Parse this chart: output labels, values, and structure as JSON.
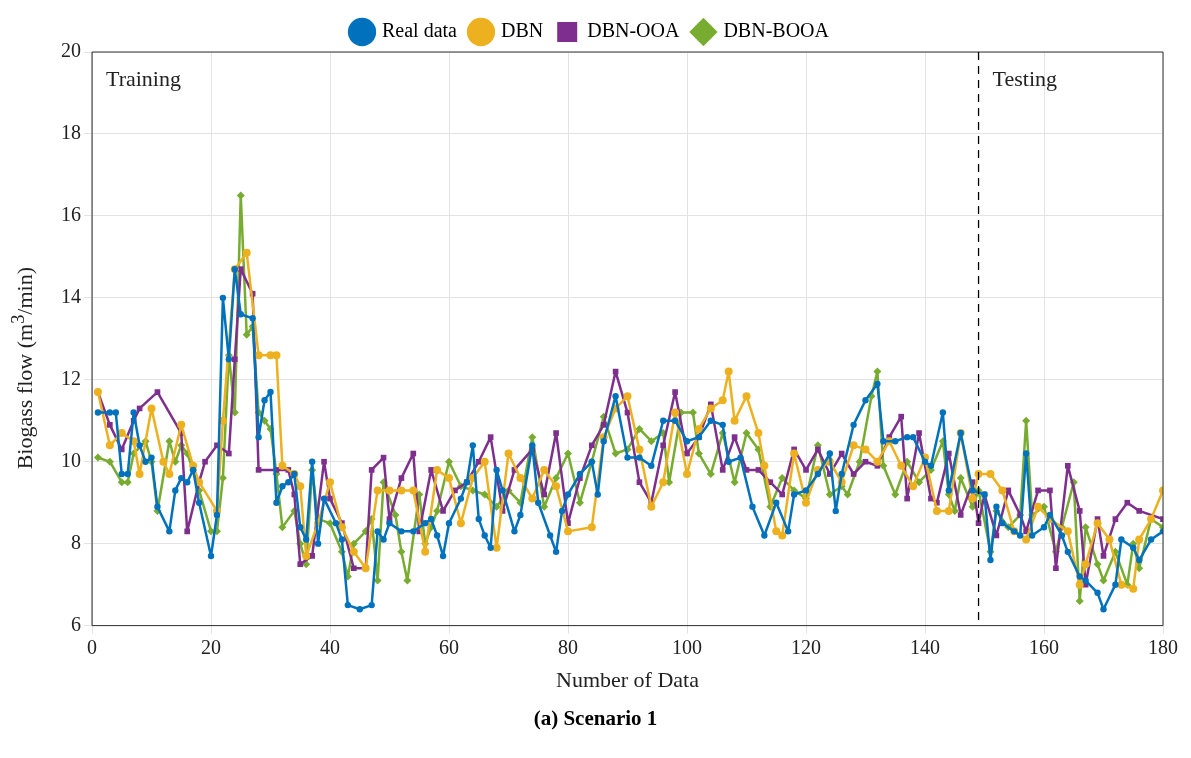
{
  "chart_data": {
    "type": "line",
    "xlabel": "Number of Data",
    "ylabel": "Biogass flow (m$^{3}$/min)",
    "xlim": [
      0,
      180
    ],
    "xticks": [
      0,
      20,
      40,
      60,
      80,
      100,
      120,
      140,
      160,
      180
    ],
    "ylim": [
      6,
      20
    ],
    "yticks": [
      6,
      8,
      10,
      12,
      14,
      16,
      18,
      20
    ],
    "grid": true,
    "legend": "top",
    "line_style": "solid",
    "ref_lines": [
      {
        "axis": "x",
        "value": 149,
        "color": "#000000",
        "line_style": "dashed"
      }
    ],
    "annotations": [
      "Training",
      "Testing",
      "(a) Scenario 1"
    ],
    "series": [
      {
        "name": "Real data",
        "color": "#0072bd",
        "marker": "circle",
        "x": [
          1,
          3,
          4,
          5,
          6,
          7,
          8,
          9,
          10,
          11,
          13,
          14,
          15,
          16,
          17,
          18,
          20,
          21,
          22,
          23,
          24,
          25,
          27,
          28,
          29,
          30,
          31,
          32,
          33,
          34,
          35,
          36,
          37,
          38,
          39,
          41,
          42,
          43,
          45,
          47,
          48,
          49,
          50,
          52,
          54,
          56,
          57,
          58,
          59,
          60,
          62,
          63,
          64,
          65,
          66,
          67,
          68,
          69,
          71,
          72,
          74,
          75,
          77,
          78,
          79,
          80,
          82,
          84,
          85,
          86,
          88,
          90,
          92,
          94,
          96,
          98,
          100,
          102,
          104,
          106,
          107,
          109,
          111,
          113,
          115,
          117,
          118,
          120,
          122,
          124,
          125,
          126,
          128,
          130,
          132,
          133,
          135,
          137,
          138,
          140,
          141,
          143,
          144,
          146,
          148,
          150,
          151,
          152,
          153,
          155,
          156,
          157,
          158,
          160,
          161,
          163,
          164,
          166,
          167,
          169,
          170,
          172,
          173,
          175,
          176,
          178,
          180
        ],
        "values": [
          11.2,
          11.2,
          11.2,
          9.7,
          9.7,
          11.2,
          10.4,
          10.0,
          10.1,
          8.9,
          8.3,
          9.3,
          9.6,
          9.5,
          9.8,
          9.0,
          7.7,
          8.7,
          14.0,
          12.5,
          14.7,
          13.6,
          13.5,
          10.6,
          11.5,
          11.7,
          9.0,
          9.4,
          9.5,
          9.7,
          8.4,
          8.1,
          10.0,
          8.0,
          9.1,
          8.5,
          8.1,
          6.5,
          6.4,
          6.5,
          8.3,
          8.1,
          8.5,
          8.3,
          8.3,
          8.5,
          8.6,
          8.2,
          7.7,
          8.5,
          9.1,
          9.5,
          10.4,
          8.6,
          8.2,
          7.9,
          9.8,
          9.3,
          8.3,
          8.7,
          10.4,
          9.0,
          8.2,
          7.8,
          8.8,
          9.2,
          9.7,
          10.0,
          9.2,
          10.5,
          11.6,
          10.1,
          10.1,
          9.9,
          11.0,
          11.0,
          10.5,
          10.6,
          11.0,
          10.9,
          10.0,
          10.1,
          8.9,
          8.2,
          9.0,
          8.3,
          9.2,
          9.3,
          9.7,
          10.2,
          8.8,
          9.7,
          10.9,
          11.5,
          11.9,
          10.5,
          10.5,
          10.6,
          10.6,
          10.0,
          9.9,
          11.2,
          9.3,
          10.7,
          9.3,
          9.2,
          7.6,
          8.9,
          8.5,
          8.3,
          8.2,
          10.2,
          8.2,
          8.4,
          8.7,
          8.2,
          7.8,
          7.2,
          7.1,
          6.8,
          6.4,
          7.0,
          8.1,
          7.9,
          7.6,
          8.1,
          8.3
        ]
      },
      {
        "name": "DBN",
        "color": "#edb120",
        "marker": "circle",
        "x": [
          1,
          3,
          5,
          7,
          8,
          10,
          12,
          13,
          15,
          17,
          18,
          21,
          22,
          24,
          26,
          28,
          30,
          31,
          32,
          34,
          35,
          36,
          38,
          40,
          42,
          44,
          46,
          48,
          50,
          52,
          54,
          56,
          58,
          60,
          62,
          64,
          66,
          68,
          70,
          72,
          74,
          76,
          78,
          80,
          84,
          86,
          88,
          90,
          92,
          94,
          96,
          98,
          100,
          102,
          104,
          106,
          107,
          108,
          110,
          112,
          113,
          115,
          116,
          118,
          120,
          122,
          124,
          126,
          128,
          130,
          132,
          134,
          136,
          138,
          140,
          142,
          144,
          146,
          148,
          149,
          151,
          153,
          155,
          157,
          159,
          161,
          164,
          166,
          167,
          169,
          171,
          173,
          175,
          176,
          178,
          180
        ],
        "values": [
          11.7,
          10.4,
          10.7,
          10.5,
          9.7,
          11.3,
          10.0,
          9.7,
          10.9,
          9.9,
          9.5,
          8.8,
          11.0,
          14.7,
          15.1,
          12.6,
          12.6,
          12.6,
          9.9,
          9.7,
          9.4,
          7.7,
          8.5,
          9.5,
          8.4,
          7.8,
          7.4,
          9.3,
          9.3,
          9.3,
          9.3,
          7.8,
          9.8,
          9.6,
          8.5,
          9.6,
          10.0,
          7.9,
          10.2,
          9.6,
          9.1,
          9.8,
          9.4,
          8.3,
          8.4,
          10.6,
          11.3,
          11.6,
          10.3,
          8.9,
          9.5,
          11.2,
          9.7,
          10.8,
          11.3,
          11.5,
          12.2,
          11.0,
          11.6,
          10.7,
          9.9,
          8.3,
          8.2,
          10.2,
          9.0,
          9.8,
          10.0,
          9.5,
          10.4,
          10.3,
          10.0,
          10.5,
          9.9,
          9.4,
          10.1,
          8.8,
          8.8,
          10.7,
          9.1,
          9.7,
          9.7,
          9.3,
          8.3,
          8.1,
          8.9,
          8.6,
          8.3,
          7.0,
          7.5,
          8.5,
          8.1,
          7.0,
          6.9,
          8.1,
          8.6,
          9.3
        ]
      },
      {
        "name": "DBN-OOA",
        "color": "#7e2f8e",
        "marker": "square",
        "x": [
          1,
          3,
          5,
          7,
          8,
          11,
          15,
          16,
          18,
          19,
          21,
          23,
          24,
          25,
          27,
          28,
          31,
          33,
          34,
          35,
          37,
          39,
          40,
          42,
          44,
          46,
          47,
          49,
          50,
          52,
          54,
          55,
          57,
          59,
          61,
          63,
          65,
          67,
          69,
          71,
          74,
          76,
          78,
          80,
          82,
          84,
          86,
          88,
          90,
          92,
          94,
          96,
          98,
          100,
          102,
          104,
          106,
          108,
          110,
          112,
          114,
          116,
          118,
          120,
          122,
          124,
          126,
          128,
          130,
          132,
          134,
          136,
          137,
          139,
          141,
          142,
          144,
          146,
          148,
          149,
          150,
          152,
          154,
          156,
          157,
          159,
          161,
          162,
          164,
          166,
          167,
          169,
          170,
          172,
          174,
          176,
          180
        ],
        "values": [
          11.7,
          10.9,
          10.3,
          11.0,
          11.3,
          11.7,
          10.7,
          8.3,
          9.5,
          10.0,
          10.4,
          10.2,
          12.5,
          14.7,
          14.1,
          9.8,
          9.8,
          9.8,
          9.2,
          7.5,
          7.7,
          10.0,
          9.1,
          8.5,
          7.4,
          7.4,
          9.8,
          10.1,
          8.6,
          9.6,
          10.2,
          8.3,
          9.8,
          8.8,
          9.3,
          9.5,
          10.0,
          10.6,
          8.8,
          9.8,
          10.3,
          9.2,
          10.7,
          8.5,
          9.6,
          10.4,
          10.9,
          12.2,
          11.2,
          9.5,
          9.0,
          10.4,
          11.7,
          10.2,
          10.6,
          11.4,
          9.8,
          10.6,
          9.8,
          9.8,
          9.5,
          9.2,
          10.3,
          9.8,
          10.3,
          9.7,
          10.2,
          9.7,
          10.0,
          9.9,
          10.6,
          11.1,
          9.1,
          10.7,
          9.1,
          9.0,
          10.2,
          8.7,
          9.5,
          8.5,
          9.2,
          8.2,
          9.3,
          8.7,
          8.3,
          9.3,
          9.3,
          7.4,
          9.9,
          8.8,
          7.0,
          8.6,
          7.7,
          8.6,
          9.0,
          8.8,
          8.6
        ]
      },
      {
        "name": "DBN-BOOA",
        "color": "#77ac30",
        "marker": "diamond",
        "x": [
          1,
          3,
          5,
          6,
          7,
          9,
          10,
          11,
          13,
          14,
          15,
          16,
          17,
          18,
          20,
          21,
          22,
          23,
          24,
          25,
          26,
          27,
          28,
          29,
          30,
          31,
          32,
          34,
          35,
          36,
          37,
          38,
          40,
          42,
          43,
          44,
          46,
          47,
          48,
          49,
          51,
          52,
          53,
          55,
          56,
          57,
          58,
          60,
          62,
          64,
          66,
          68,
          70,
          72,
          74,
          76,
          78,
          80,
          82,
          84,
          86,
          88,
          90,
          92,
          94,
          96,
          97,
          99,
          101,
          102,
          104,
          106,
          108,
          110,
          112,
          114,
          116,
          118,
          120,
          122,
          124,
          126,
          127,
          129,
          131,
          132,
          133,
          135,
          137,
          139,
          141,
          143,
          144,
          145,
          146,
          148,
          149,
          151,
          152,
          154,
          156,
          157,
          158,
          160,
          162,
          163,
          165,
          166,
          167,
          169,
          170,
          172,
          174,
          175,
          176,
          178,
          180
        ],
        "values": [
          10.1,
          10.0,
          9.5,
          9.5,
          10.2,
          10.5,
          10.0,
          8.8,
          10.5,
          10.0,
          10.4,
          10.2,
          9.8,
          9.3,
          8.3,
          8.3,
          9.6,
          12.6,
          11.2,
          16.5,
          13.1,
          13.3,
          11.2,
          11.0,
          10.8,
          9.7,
          8.4,
          8.8,
          8.0,
          7.5,
          9.8,
          8.6,
          8.5,
          7.8,
          7.2,
          8.0,
          8.3,
          8.6,
          7.1,
          9.5,
          8.7,
          7.8,
          7.1,
          9.2,
          8.0,
          8.4,
          8.8,
          10.0,
          9.4,
          9.3,
          9.2,
          8.9,
          9.3,
          9.0,
          10.6,
          8.9,
          9.6,
          10.2,
          9.0,
          10.0,
          11.1,
          10.2,
          10.3,
          10.8,
          10.5,
          10.7,
          9.5,
          11.2,
          11.2,
          10.2,
          9.7,
          10.7,
          9.5,
          10.7,
          10.3,
          8.9,
          9.6,
          9.3,
          9.1,
          10.4,
          9.2,
          9.4,
          9.2,
          10.0,
          11.6,
          12.2,
          9.9,
          9.2,
          10.0,
          9.5,
          9.8,
          10.5,
          9.2,
          8.8,
          9.6,
          8.9,
          9.3,
          7.8,
          8.8,
          8.4,
          8.7,
          11.0,
          8.7,
          8.9,
          7.8,
          8.4,
          9.5,
          6.6,
          8.4,
          7.5,
          7.1,
          7.8,
          7.0,
          8.0,
          7.4,
          8.6,
          8.4
        ]
      }
    ]
  }
}
